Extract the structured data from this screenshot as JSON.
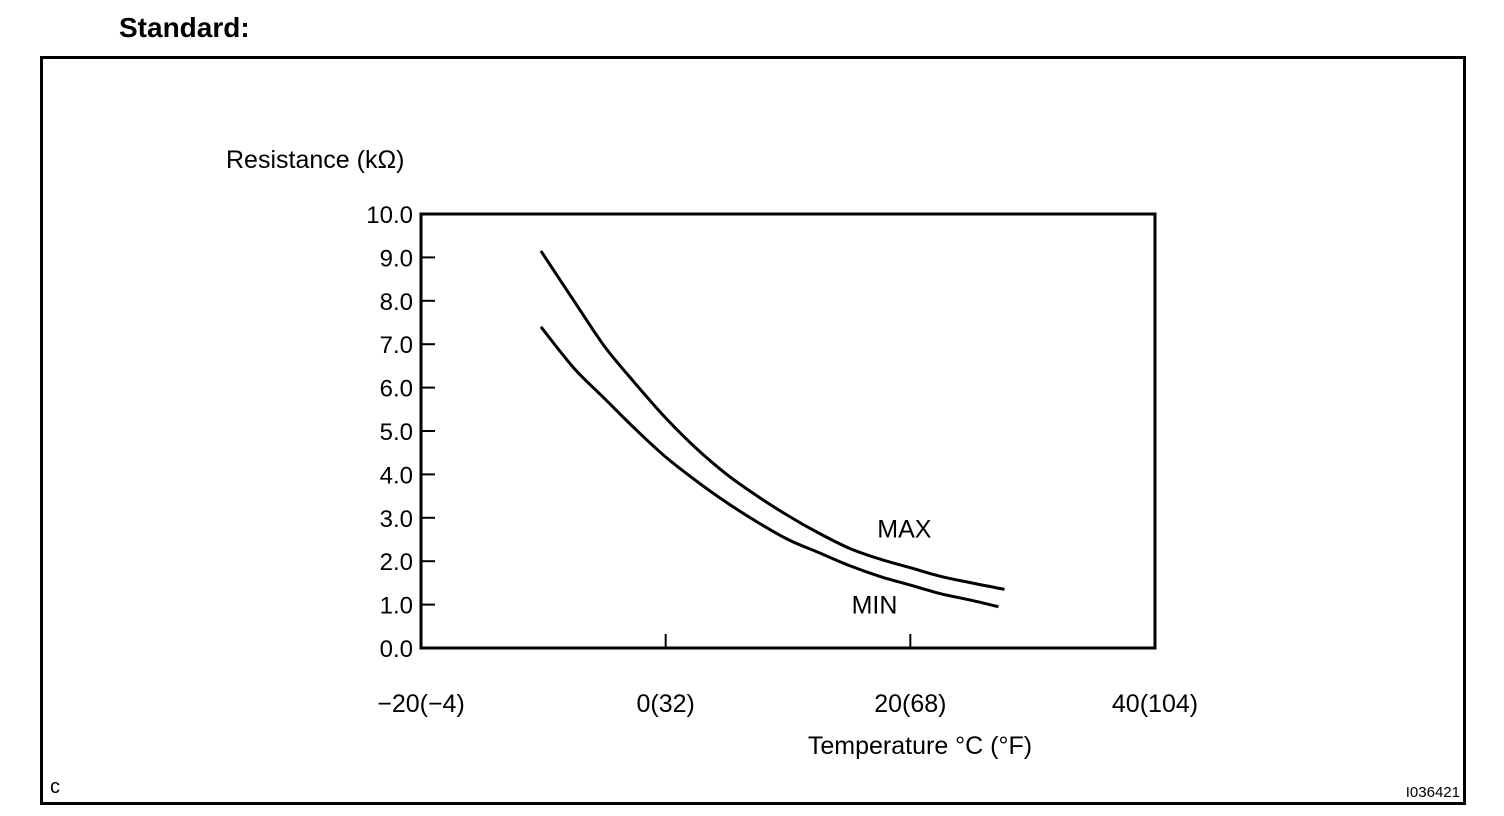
{
  "heading": "Standard:",
  "figure_letter": "c",
  "figure_id": "I036421",
  "chart_data": {
    "type": "line",
    "title": "",
    "ylabel": "Resistance (kΩ)",
    "xlabel": "Temperature °C (°F)",
    "ylim": [
      0,
      10
    ],
    "xlim": [
      -20,
      40
    ],
    "yticks": [
      "0.0",
      "1.0",
      "2.0",
      "3.0",
      "4.0",
      "5.0",
      "6.0",
      "7.0",
      "8.0",
      "9.0",
      "10.0"
    ],
    "xticks": [
      {
        "value": -20,
        "label": "−20(−4)"
      },
      {
        "value": 0,
        "label": "0(32)"
      },
      {
        "value": 20,
        "label": "20(68)"
      },
      {
        "value": 40,
        "label": "40(104)"
      }
    ],
    "series": [
      {
        "name": "MAX",
        "x": [
          -10.2,
          -7.5,
          -5,
          -2.5,
          0,
          2.5,
          5,
          7.5,
          10,
          12.5,
          15,
          17.5,
          20,
          22.5,
          25,
          27.7
        ],
        "y": [
          9.15,
          8.0,
          6.95,
          6.1,
          5.3,
          4.6,
          4.0,
          3.5,
          3.05,
          2.65,
          2.3,
          2.05,
          1.85,
          1.65,
          1.5,
          1.35
        ]
      },
      {
        "name": "MIN",
        "x": [
          -10.2,
          -7.5,
          -5,
          -2.5,
          0,
          2.5,
          5,
          7.5,
          10,
          12.5,
          15,
          17.5,
          20,
          22.5,
          25,
          27.2
        ],
        "y": [
          7.4,
          6.45,
          5.75,
          5.05,
          4.4,
          3.85,
          3.35,
          2.9,
          2.5,
          2.2,
          1.9,
          1.65,
          1.45,
          1.25,
          1.1,
          0.95
        ]
      }
    ],
    "annotations": [
      {
        "text": "MAX",
        "x": 17.3,
        "y": 2.75
      },
      {
        "text": "MIN",
        "x": 15.2,
        "y": 1.0
      }
    ]
  }
}
